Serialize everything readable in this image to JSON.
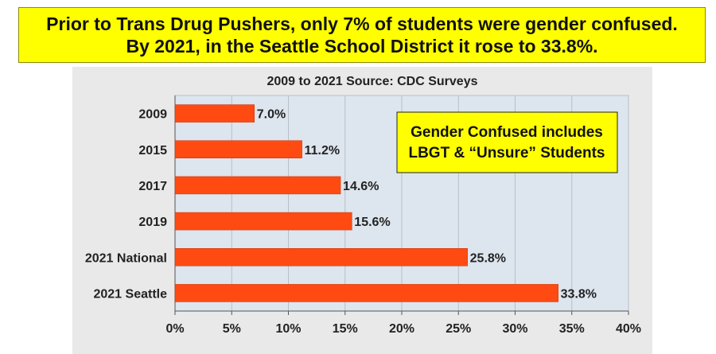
{
  "headline": {
    "line1": "Prior to Trans Drug Pushers, only 7% of students were gender confused.",
    "line2": "By 2021, in the Seattle School District it rose to 33.8%."
  },
  "colors": {
    "banner_bg": "#ffff00",
    "bar": "#ff4a12",
    "plot_bg": "#dde5ee",
    "panel_bg": "#e9e9e9"
  },
  "chart_data": {
    "type": "bar",
    "orientation": "horizontal",
    "title": "2009 to 2021 Source: CDC Surveys",
    "categories": [
      "2009",
      "2015",
      "2017",
      "2019",
      "2021 National",
      "2021 Seattle"
    ],
    "values": [
      7.0,
      11.2,
      14.6,
      15.6,
      25.8,
      33.8
    ],
    "value_labels": [
      "7.0%",
      "11.2%",
      "14.6%",
      "15.6%",
      "25.8%",
      "33.8%"
    ],
    "xlim": [
      0,
      40
    ],
    "xticks": [
      0,
      5,
      10,
      15,
      20,
      25,
      30,
      35,
      40
    ],
    "xtick_labels": [
      "0%",
      "5%",
      "10%",
      "15%",
      "20%",
      "25%",
      "30%",
      "35%",
      "40%"
    ],
    "xlabel": "",
    "ylabel": "",
    "grid": true,
    "annotation": {
      "line1": "Gender Confused includes",
      "line2": "LBGT & “Unsure” Students"
    }
  }
}
